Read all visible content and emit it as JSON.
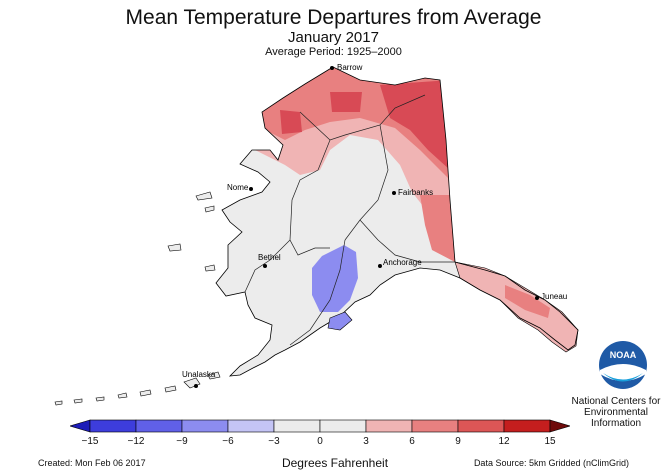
{
  "header": {
    "title": "Mean Temperature Departures from Average",
    "subtitle": "January 2017",
    "period": "Average Period: 1925–2000"
  },
  "cities": [
    {
      "name": "Barrow"
    },
    {
      "name": "Nome"
    },
    {
      "name": "Fairbanks"
    },
    {
      "name": "Bethel"
    },
    {
      "name": "Anchorage"
    },
    {
      "name": "Juneau"
    },
    {
      "name": "Unalaska"
    }
  ],
  "legend": {
    "ticks": [
      "−15",
      "−12",
      "−9",
      "−6",
      "−3",
      "0",
      "3",
      "6",
      "9",
      "12",
      "15"
    ],
    "colors": [
      "#1d1db8",
      "#3d3ddc",
      "#6060e8",
      "#8c8cf0",
      "#c4c4f5",
      "#ececec",
      "#ececec",
      "#f0b4b4",
      "#e88080",
      "#dc5656",
      "#c41e1e",
      "#6e0a0a"
    ],
    "unit_label": "Degrees Fahrenheit"
  },
  "footer": {
    "created": "Created: Mon Feb 06 2017",
    "source": "Data Source: 5km Gridded (nClimGrid)"
  },
  "branding": {
    "logo_text": "NOAA",
    "org_line1": "National Centers for",
    "org_line2": "Environmental",
    "org_line3": "Information"
  },
  "map_colors": {
    "neutral": "#ececec",
    "light_warm": "#f0b4b4",
    "warm": "#e88080",
    "hot": "#d84a55",
    "cool": "#8c8cf0",
    "outline": "#000000"
  }
}
